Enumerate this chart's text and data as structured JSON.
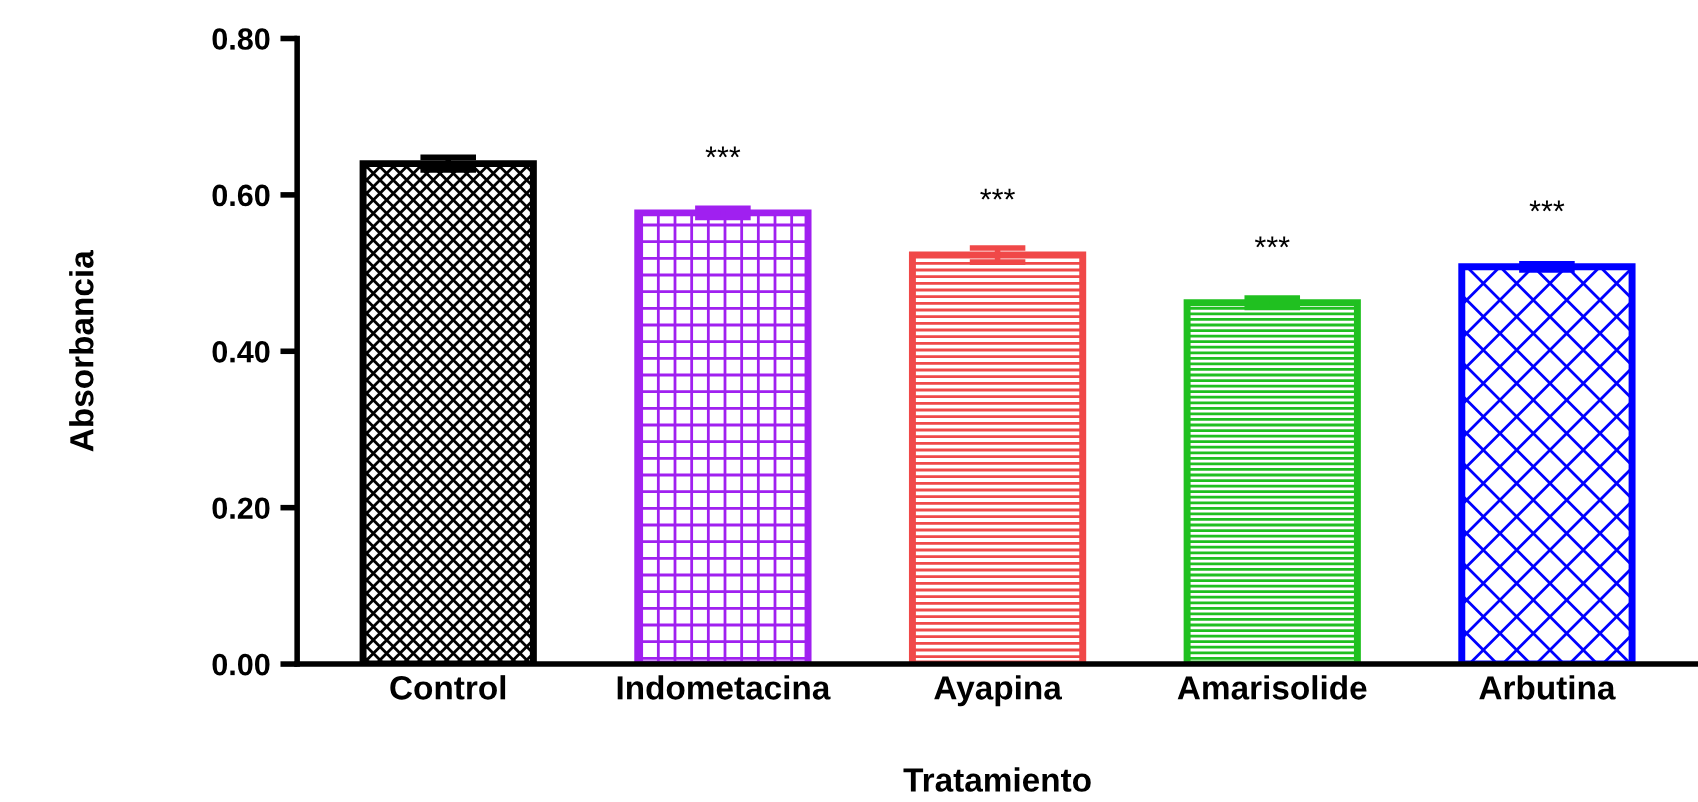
{
  "chart_data": {
    "type": "bar",
    "xlabel": "Tratamiento",
    "ylabel": "Absorbancia",
    "categories": [
      "Control",
      "Indometacina",
      "Ayapina",
      "Amarisolide",
      "Arbutina"
    ],
    "values": [
      0.64,
      0.577,
      0.523,
      0.462,
      0.508
    ],
    "errors": [
      0.008,
      0.006,
      0.009,
      0.006,
      0.004
    ],
    "colors": [
      "#000000",
      "#a020f0",
      "#f04848",
      "#20c020",
      "#0000ff"
    ],
    "ylim": [
      0,
      0.8
    ],
    "yticks": [
      {
        "value": 0,
        "label": "0.00"
      },
      {
        "value": 0.2,
        "label": "0.20"
      },
      {
        "value": 0.4,
        "label": "0.40"
      },
      {
        "value": 0.6,
        "label": "0.60"
      },
      {
        "value": 0.8,
        "label": "0.80"
      }
    ],
    "annotations": [
      "***",
      "***",
      "***",
      "***"
    ],
    "grid": false,
    "legend": false
  }
}
